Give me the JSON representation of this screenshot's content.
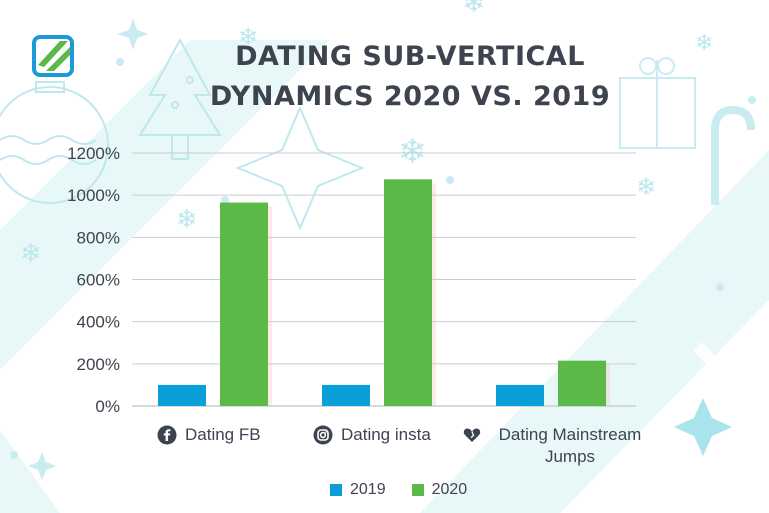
{
  "title_lines": [
    "DATING SUB-VERTICAL",
    "DYNAMICS 2020 VS. 2019"
  ],
  "colors": {
    "2019": "#0a9fd6",
    "2020": "#5ab947",
    "grid": "#c9cdd2",
    "text": "#3d4450"
  },
  "chart_data": {
    "type": "bar",
    "title": "DATING SUB-VERTICAL DYNAMICS 2020 VS. 2019",
    "categories": [
      "Dating FB",
      "Dating insta",
      "Dating Mainstream Jumps"
    ],
    "category_icons": [
      "facebook-icon",
      "instagram-icon",
      "heart-icon"
    ],
    "series": [
      {
        "name": "2019",
        "values": [
          100,
          100,
          100
        ]
      },
      {
        "name": "2020",
        "values": [
          965,
          1075,
          215
        ]
      }
    ],
    "ylim": [
      0,
      1200
    ],
    "yticks": [
      "0%",
      "200%",
      "400%",
      "600%",
      "800%",
      "1000%",
      "1200%"
    ],
    "grid": true,
    "legend": "bottom-center"
  }
}
